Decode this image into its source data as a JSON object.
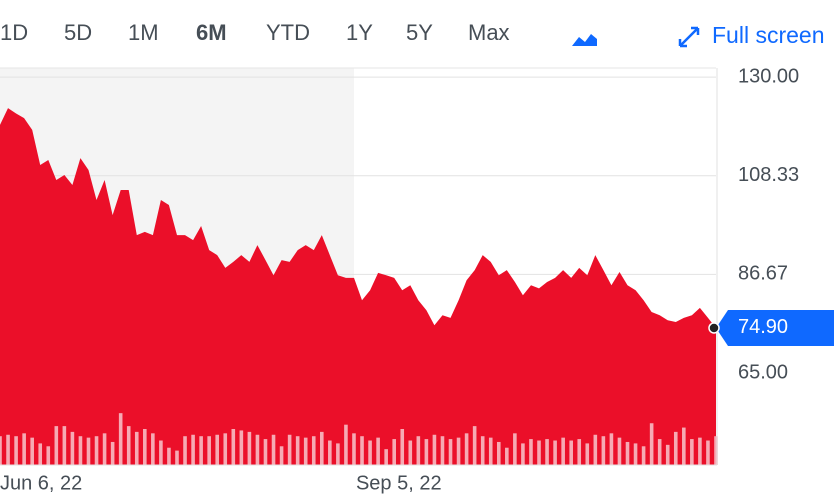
{
  "toolbar": {
    "ranges": [
      "1D",
      "5D",
      "1M",
      "6M",
      "YTD",
      "1Y",
      "5Y",
      "Max"
    ],
    "active": "6M",
    "fullscreen": "Full screen"
  },
  "chart_data": {
    "type": "area",
    "categories": [
      "Jun 6, 22",
      null,
      null,
      null,
      null,
      null,
      null,
      null,
      null,
      null,
      null,
      null,
      null,
      null,
      null,
      null,
      null,
      null,
      null,
      null,
      null,
      null,
      null,
      null,
      null,
      null,
      null,
      null,
      null,
      null,
      null,
      null,
      null,
      null,
      null,
      null,
      null,
      null,
      null,
      null,
      null,
      null,
      null,
      null,
      "Sep 5, 22",
      null,
      null,
      null,
      null,
      null,
      null,
      null,
      null,
      null,
      null,
      null,
      null,
      null,
      null,
      null,
      null,
      null,
      null,
      null,
      null,
      null,
      null,
      null,
      null,
      null,
      null,
      null,
      null,
      null,
      null,
      null,
      null,
      null,
      null,
      null,
      null,
      null,
      null,
      null,
      null,
      null,
      null,
      null,
      null,
      null
    ],
    "series": [
      {
        "color": "#eb0f29",
        "values": [
          119.5,
          123.2,
          122,
          121,
          118.4,
          110.7,
          111.8,
          107.4,
          108.5,
          106.3,
          112.2,
          109.6,
          103,
          107.4,
          99.7,
          105.2,
          105.2,
          95.3,
          96,
          95.3,
          103,
          101.9,
          95.3,
          95.3,
          94.2,
          97.3,
          92,
          90.9,
          88.1,
          89.4,
          90.9,
          89.4,
          93.1,
          89.8,
          86.5,
          89.8,
          89.4,
          92,
          93.1,
          92,
          95.3,
          90.9,
          86.5,
          85.9,
          85.9,
          81,
          83.2,
          87,
          86.5,
          85.9,
          83.2,
          84.3,
          81,
          78.8,
          75.5,
          77.7,
          77.1,
          81,
          85.4,
          87.6,
          90.9,
          89.4,
          86.5,
          87.6,
          85,
          82.1,
          84.3,
          83.6,
          85,
          85.9,
          87.6,
          85.9,
          88.1,
          86.5,
          90.9,
          87.6,
          84.3,
          87.2,
          84.3,
          83.2,
          81,
          78.4,
          77.7,
          76.6,
          76.2,
          77.1,
          77.7,
          79.3,
          77.1,
          74.9
        ]
      }
    ],
    "volume": {
      "color": "#f6aab4",
      "lim": [
        0,
        100
      ],
      "values": [
        40,
        42,
        40,
        44,
        38,
        30,
        26,
        54,
        54,
        46,
        40,
        38,
        40,
        44,
        32,
        72,
        54,
        46,
        50,
        44,
        34,
        24,
        20,
        40,
        42,
        40,
        40,
        42,
        44,
        50,
        48,
        46,
        42,
        36,
        42,
        26,
        42,
        40,
        38,
        40,
        46,
        34,
        30,
        56,
        44,
        40,
        34,
        38,
        22,
        36,
        50,
        34,
        40,
        36,
        42,
        40,
        36,
        38,
        44,
        54,
        40,
        38,
        32,
        24,
        44,
        30,
        36,
        34,
        36,
        34,
        38,
        34,
        36,
        30,
        42,
        40,
        44,
        38,
        32,
        30,
        26,
        58,
        36,
        28,
        46,
        52,
        36,
        38,
        34,
        40
      ]
    },
    "ylim": [
      44.8,
      132
    ],
    "yticks": [
      {
        "value": 130,
        "label": "130.00"
      },
      {
        "value": 108.33,
        "label": "108.33"
      },
      {
        "value": 86.67,
        "label": "86.67"
      },
      {
        "value": 65,
        "label": "65.00"
      }
    ],
    "current": {
      "value": 74.9,
      "label": "74.90"
    },
    "shaded_until": "Sep 5, 22",
    "grid": true
  }
}
